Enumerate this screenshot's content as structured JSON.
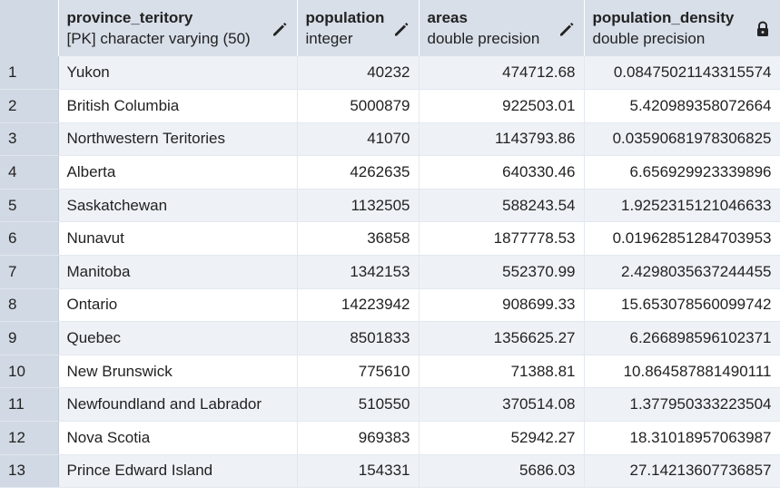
{
  "columns": [
    {
      "name": "province_teritory",
      "type": "[PK] character varying (50)",
      "icon": "pencil-icon"
    },
    {
      "name": "population",
      "type": "integer",
      "icon": "pencil-icon"
    },
    {
      "name": "areas",
      "type": "double precision",
      "icon": "pencil-icon"
    },
    {
      "name": "population_density",
      "type": "double precision",
      "icon": "lock-icon"
    }
  ],
  "rows": [
    {
      "index": "1",
      "province": "Yukon",
      "population": "40232",
      "areas": "474712.68",
      "density": "0.08475021143315574"
    },
    {
      "index": "2",
      "province": "British Columbia",
      "population": "5000879",
      "areas": "922503.01",
      "density": "5.420989358072664"
    },
    {
      "index": "3",
      "province": "Northwestern Teritories",
      "population": "41070",
      "areas": "1143793.86",
      "density": "0.03590681978306825"
    },
    {
      "index": "4",
      "province": "Alberta",
      "population": "4262635",
      "areas": "640330.46",
      "density": "6.656929923339896"
    },
    {
      "index": "5",
      "province": "Saskatchewan",
      "population": "1132505",
      "areas": "588243.54",
      "density": "1.9252315121046633"
    },
    {
      "index": "6",
      "province": "Nunavut",
      "population": "36858",
      "areas": "1877778.53",
      "density": "0.01962851284703953"
    },
    {
      "index": "7",
      "province": "Manitoba",
      "population": "1342153",
      "areas": "552370.99",
      "density": "2.4298035637244455"
    },
    {
      "index": "8",
      "province": "Ontario",
      "population": "14223942",
      "areas": "908699.33",
      "density": "15.653078560099742"
    },
    {
      "index": "9",
      "province": "Quebec",
      "population": "8501833",
      "areas": "1356625.27",
      "density": "6.266898596102371"
    },
    {
      "index": "10",
      "province": "New Brunswick",
      "population": "775610",
      "areas": "71388.81",
      "density": "10.864587881490111"
    },
    {
      "index": "11",
      "province": "Newfoundland and Labrador",
      "population": "510550",
      "areas": "370514.08",
      "density": "1.377950333223504"
    },
    {
      "index": "12",
      "province": "Nova Scotia",
      "population": "969383",
      "areas": "52942.27",
      "density": "18.31018957063987"
    },
    {
      "index": "13",
      "province": "Prince Edward Island",
      "population": "154331",
      "areas": "5686.03",
      "density": "27.14213607736857"
    }
  ],
  "colors": {
    "header_bg": "#d8dfe9",
    "index_bg": "#d1d9e4",
    "stripe_bg": "#eef2f7",
    "text": "#222222"
  }
}
